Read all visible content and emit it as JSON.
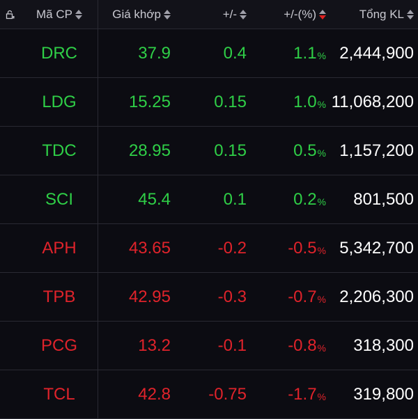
{
  "header": {
    "symbol": "Mã CP",
    "price": "Giá khớp",
    "change": "+/-",
    "pct": "+/-(%)",
    "volume": "Tổng KL"
  },
  "colors": {
    "up": "#2fcf47",
    "down": "#e0232b",
    "text": "#ffffff",
    "bg": "#0c0c12"
  },
  "rows": [
    {
      "symbol": "DRC",
      "price": "37.9",
      "change": "0.4",
      "pct": "1.1",
      "pct_sign": "%",
      "volume": "2,444,900",
      "dir": "up"
    },
    {
      "symbol": "LDG",
      "price": "15.25",
      "change": "0.15",
      "pct": "1.0",
      "pct_sign": "%",
      "volume": "11,068,200",
      "dir": "up"
    },
    {
      "symbol": "TDC",
      "price": "28.95",
      "change": "0.15",
      "pct": "0.5",
      "pct_sign": "%",
      "volume": "1,157,200",
      "dir": "up"
    },
    {
      "symbol": "SCI",
      "price": "45.4",
      "change": "0.1",
      "pct": "0.2",
      "pct_sign": "%",
      "volume": "801,500",
      "dir": "up"
    },
    {
      "symbol": "APH",
      "price": "43.65",
      "change": "-0.2",
      "pct": "-0.5",
      "pct_sign": "%",
      "volume": "5,342,700",
      "dir": "down"
    },
    {
      "symbol": "TPB",
      "price": "42.95",
      "change": "-0.3",
      "pct": "-0.7",
      "pct_sign": "%",
      "volume": "2,206,300",
      "dir": "down"
    },
    {
      "symbol": "PCG",
      "price": "13.2",
      "change": "-0.1",
      "pct": "-0.8",
      "pct_sign": "%",
      "volume": "318,300",
      "dir": "down"
    },
    {
      "symbol": "TCL",
      "price": "42.8",
      "change": "-0.75",
      "pct": "-1.7",
      "pct_sign": "%",
      "volume": "319,800",
      "dir": "down"
    }
  ]
}
